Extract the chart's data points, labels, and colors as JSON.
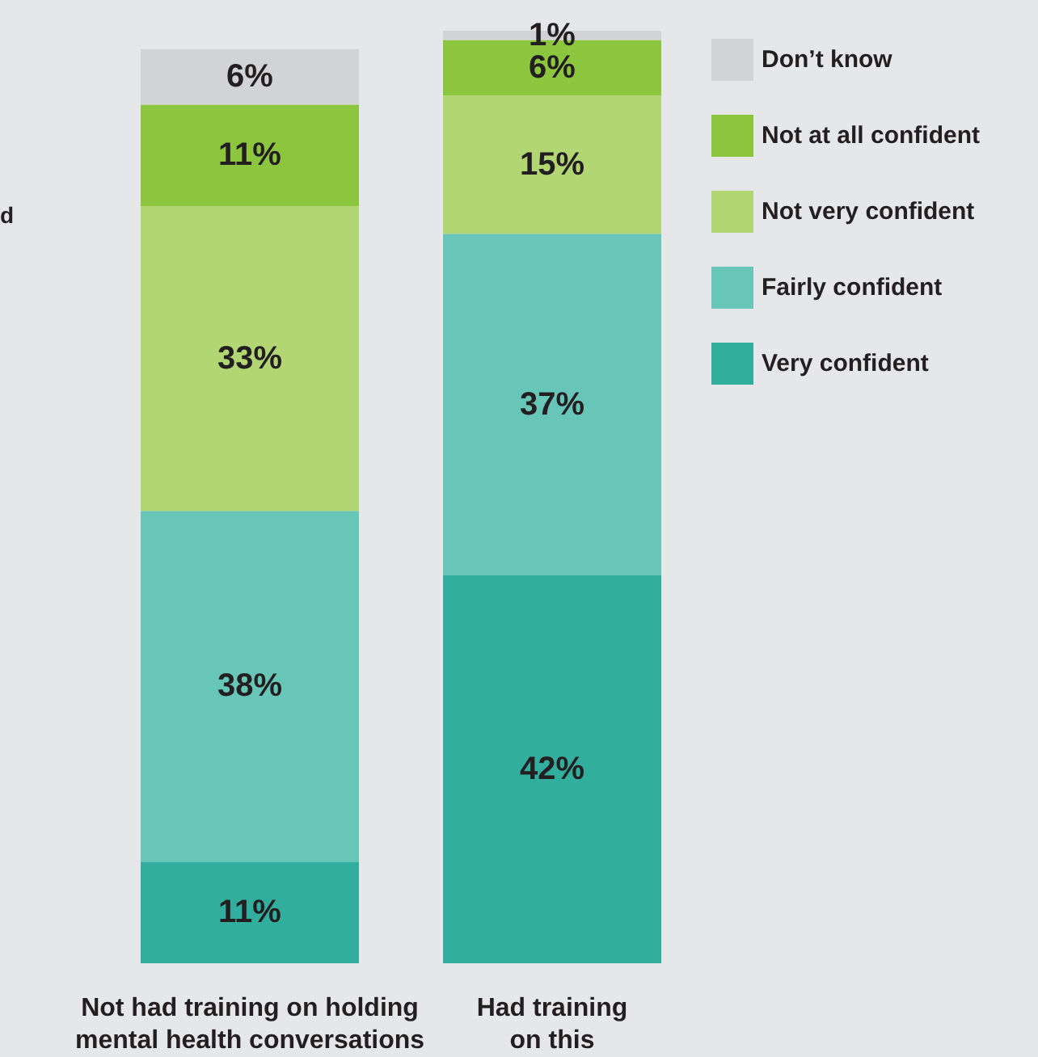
{
  "chart_data": {
    "type": "bar",
    "stacked": true,
    "legend": "right",
    "tick_labels": "x",
    "categories": [
      "Not had training on holding\nmental health conversations",
      "Had training\non this"
    ],
    "series": [
      {
        "name": "Very confident",
        "color": "#32ae9f",
        "values": [
          11,
          42
        ],
        "value_labels": [
          "11%",
          "42%"
        ]
      },
      {
        "name": "Fairly confident",
        "color": "#67c6b7",
        "values": [
          38,
          37
        ],
        "value_labels": [
          "38%",
          "37%"
        ]
      },
      {
        "name": "Not very confident",
        "color": "#b2d673",
        "values": [
          33,
          15
        ],
        "value_labels": [
          "33%",
          "15%"
        ]
      },
      {
        "name": "Not at all confident",
        "color": "#8cc63f",
        "values": [
          11,
          6
        ],
        "value_labels": [
          "11%",
          "6%"
        ]
      },
      {
        "name": "Don’t know",
        "color": "#d1d3d4",
        "values": [
          6,
          1
        ],
        "value_labels": [
          "6%",
          "1%"
        ]
      }
    ],
    "annotations": [
      "d"
    ]
  }
}
